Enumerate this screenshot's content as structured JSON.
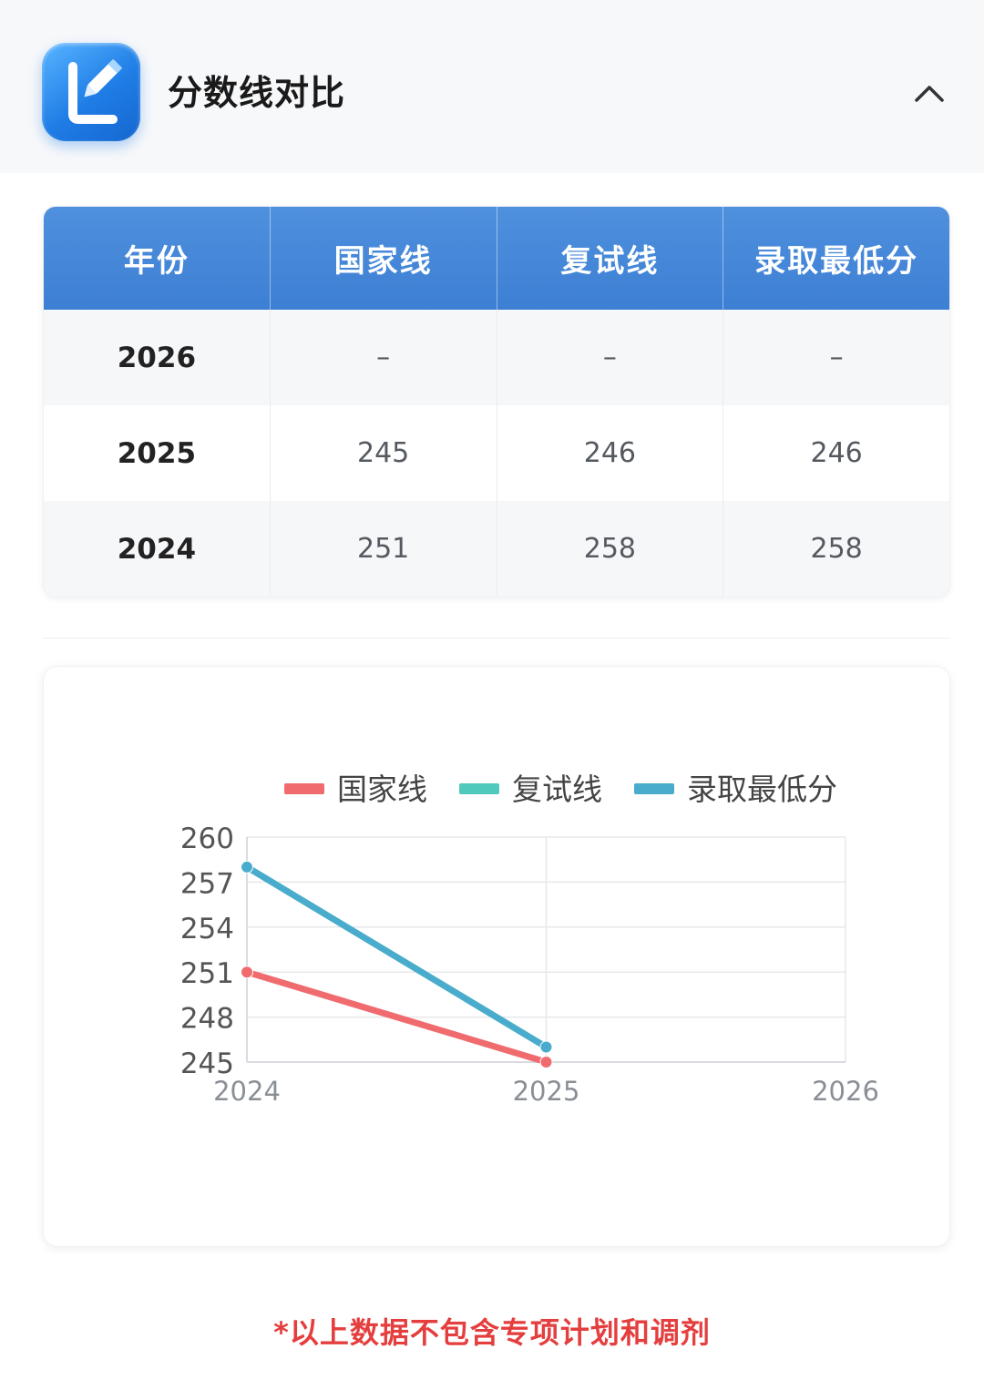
{
  "header": {
    "title": "分数线对比",
    "app_icon": "pencil-L-icon",
    "collapse_icon": "chevron-up-icon"
  },
  "table": {
    "columns": [
      "年份",
      "国家线",
      "复试线",
      "录取最低分"
    ],
    "rows": [
      {
        "year": "2026",
        "national": "–",
        "retest": "–",
        "min_admit": "–"
      },
      {
        "year": "2025",
        "national": "245",
        "retest": "246",
        "min_admit": "246"
      },
      {
        "year": "2024",
        "national": "251",
        "retest": "258",
        "min_admit": "258"
      }
    ],
    "header_color": "#4a8ad9"
  },
  "chart_data": {
    "type": "line",
    "x": [
      "2024",
      "2025",
      "2026"
    ],
    "ylim": [
      245,
      260
    ],
    "yticks": [
      "260",
      "257",
      "254",
      "251",
      "248",
      "245"
    ],
    "grid": true,
    "legend_position": "top",
    "series": [
      {
        "name": "国家线",
        "color": "#ef6b6e",
        "values": [
          251,
          245,
          null
        ]
      },
      {
        "name": "复试线",
        "color": "#4fc9bb",
        "values": [
          258,
          246,
          null
        ]
      },
      {
        "name": "录取最低分",
        "color": "#4aaccc",
        "values": [
          258,
          246,
          null
        ]
      }
    ]
  },
  "footnote": "*以上数据不包含专项计划和调剂"
}
